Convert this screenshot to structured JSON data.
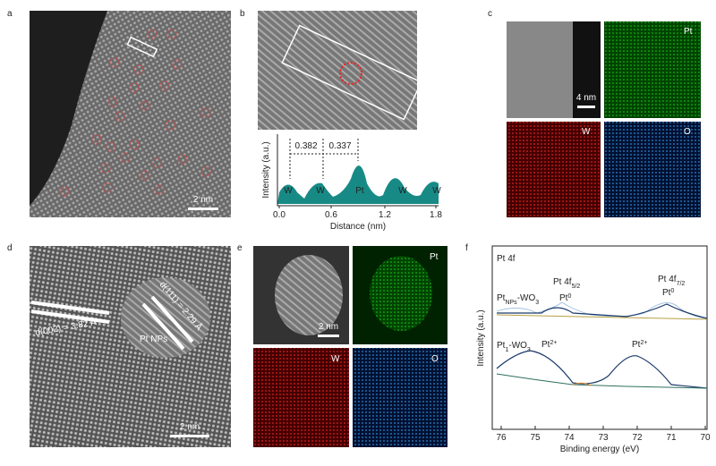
{
  "panels": [
    {
      "label": "a",
      "scale": "2 nm"
    },
    {
      "label": "b",
      "ylabel": "Intensity (a.u.)",
      "xlabel": "Distance (nm)",
      "xticks": [
        "0.0",
        "0.6",
        "1.2",
        "1.8"
      ],
      "spacings": [
        "0.382",
        "0.337"
      ],
      "peaks": [
        "W",
        "W",
        "Pt",
        "W",
        "W"
      ]
    },
    {
      "label": "c",
      "scale": "4 nm",
      "maps": [
        "Pt",
        "W",
        "O"
      ]
    },
    {
      "label": "d",
      "annotations": [
        "d(002) = 3.82 Å",
        "d(111) = 2.29 Å",
        "Pt NPs"
      ],
      "scale": "2 nm"
    },
    {
      "label": "e",
      "scale": "2 nm",
      "maps": [
        "Pt",
        "W",
        "O"
      ]
    },
    {
      "label": "f",
      "title": "Pt 4f",
      "ylabel": "Intensity (a.u.)",
      "xlabel": "Binding energy (eV)",
      "xticks": [
        "76",
        "75",
        "74",
        "73",
        "72",
        "71",
        "70"
      ],
      "peak_labels": [
        {
          "base": "Pt 4f",
          "sub": "5/2"
        },
        {
          "base": "Pt 4f",
          "sub": "7/2"
        },
        {
          "base": "Pt",
          "sup": "0"
        },
        {
          "base": "Pt",
          "sup": "0"
        },
        {
          "base": "Pt",
          "sup": "2+"
        },
        {
          "base": "Pt",
          "sup": "2+"
        }
      ],
      "samples": [
        {
          "base": "Pt",
          "sub": "NPs",
          "rest": "-WO"
        },
        {
          "base": "Pt",
          "sub": "1",
          "rest": "-WO"
        }
      ],
      "sample_sub": "3"
    }
  ]
}
